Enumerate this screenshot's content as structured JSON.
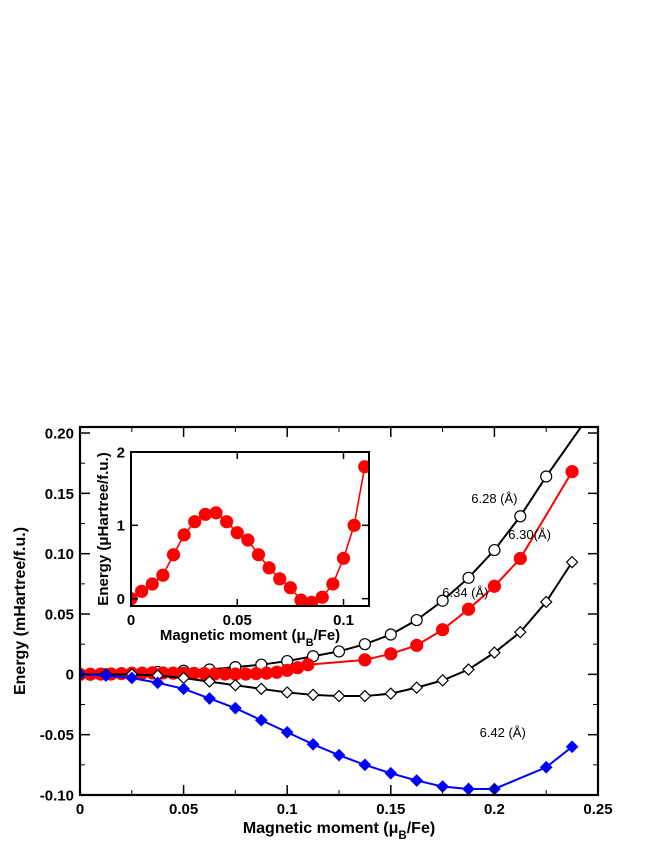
{
  "chart_data": [
    {
      "type": "line",
      "xlabel": "Magnetic moment (μB/Fe)",
      "ylabel": "Energy (mHartree/f.u.)",
      "xlim": [
        0,
        0.25
      ],
      "ylim": [
        -0.1,
        0.205
      ],
      "xticks": [
        0,
        0.05,
        0.1,
        0.15,
        0.2,
        0.25
      ],
      "xtick_labels": [
        "0",
        "0.05",
        "0.1",
        "0.15",
        "0.2",
        "0.25"
      ],
      "yticks": [
        -0.1,
        -0.05,
        0,
        0.05,
        0.1,
        0.15,
        0.2
      ],
      "ytick_labels": [
        "-0.10",
        "-0.05",
        "0",
        "0.05",
        "0.10",
        "0.15",
        "0.20"
      ],
      "grid": false,
      "series": [
        {
          "name": "6.28 (Å)",
          "color": "#000000",
          "marker": "open-circle",
          "x": [
            0,
            0.0125,
            0.025,
            0.0375,
            0.05,
            0.0625,
            0.075,
            0.0875,
            0.1,
            0.1125,
            0.125,
            0.1375,
            0.15,
            0.1625,
            0.175,
            0.1875,
            0.2,
            0.2125,
            0.225
          ],
          "y": [
            0,
            0,
            0.001,
            0.002,
            0.003,
            0.004,
            0.006,
            0.008,
            0.011,
            0.015,
            0.019,
            0.025,
            0.033,
            0.045,
            0.061,
            0.08,
            0.103,
            0.131,
            0.164
          ],
          "curve_extends_to": [
            0.25,
            0.225
          ]
        },
        {
          "name": "6.30(Å)",
          "color": "#ff0000",
          "marker": "filled-circle",
          "x": [
            0,
            0.005,
            0.01,
            0.015,
            0.02,
            0.025,
            0.03,
            0.035,
            0.04,
            0.045,
            0.05,
            0.055,
            0.06,
            0.065,
            0.07,
            0.075,
            0.08,
            0.085,
            0.09,
            0.095,
            0.1,
            0.105,
            0.11,
            0.1375,
            0.15,
            0.1625,
            0.175,
            0.1875,
            0.2,
            0.2125,
            0.2375
          ],
          "y": [
            0,
            0.0001,
            0.0002,
            0.0003,
            0.0006,
            0.0009,
            0.001,
            0.0012,
            0.0011,
            0.001,
            0.0009,
            0.0008,
            0.0006,
            0.0004,
            0.0003,
            0.0002,
            0.0003,
            0.0006,
            0.001,
            0.0018,
            0.0033,
            0.0055,
            0.008,
            0.012,
            0.017,
            0.024,
            0.037,
            0.054,
            0.073,
            0.096,
            0.168
          ]
        },
        {
          "name": "6.34 (Å)",
          "color": "#000000",
          "marker": "open-diamond",
          "x": [
            0,
            0.0125,
            0.025,
            0.0375,
            0.05,
            0.0625,
            0.075,
            0.0875,
            0.1,
            0.1125,
            0.125,
            0.1375,
            0.15,
            0.1625,
            0.175,
            0.1875,
            0.2,
            0.2125,
            0.225,
            0.2375
          ],
          "y": [
            0,
            0,
            0,
            -0.001,
            -0.003,
            -0.006,
            -0.009,
            -0.012,
            -0.015,
            -0.017,
            -0.018,
            -0.018,
            -0.016,
            -0.011,
            -0.005,
            0.004,
            0.018,
            0.035,
            0.06,
            0.093
          ]
        },
        {
          "name": "6.42 (Å)",
          "color": "#0000ff",
          "marker": "filled-diamond",
          "x": [
            0,
            0.0125,
            0.025,
            0.0375,
            0.05,
            0.0625,
            0.075,
            0.0875,
            0.1,
            0.1125,
            0.125,
            0.1375,
            0.15,
            0.1625,
            0.175,
            0.1875,
            0.2,
            0.225,
            0.2375
          ],
          "y": [
            0,
            -0.001,
            -0.003,
            -0.007,
            -0.012,
            -0.02,
            -0.028,
            -0.038,
            -0.048,
            -0.058,
            -0.067,
            -0.075,
            -0.082,
            -0.088,
            -0.093,
            -0.095,
            -0.095,
            -0.077,
            -0.06
          ]
        }
      ],
      "annotations": [
        {
          "text": "6.28 (Å)",
          "x": 0.2,
          "y": 0.142
        },
        {
          "text": "6.30(Å)",
          "x": 0.217,
          "y": 0.112
        },
        {
          "text": "6.34 (Å)",
          "x": 0.186,
          "y": 0.064
        },
        {
          "text": "6.42 (Å)",
          "x": 0.204,
          "y": -0.052
        }
      ]
    },
    {
      "type": "line",
      "inset": true,
      "xlabel": "Magnetic moment (μB/Fe)",
      "ylabel": "Energy (μHartree/f.u.)",
      "xlim": [
        0,
        0.112
      ],
      "ylim": [
        -0.1,
        2.0
      ],
      "xticks": [
        0,
        0.05,
        0.1
      ],
      "xtick_labels": [
        "0",
        "0.05",
        "0.1"
      ],
      "yticks": [
        0,
        1,
        2
      ],
      "ytick_labels": [
        "0",
        "1",
        "2"
      ],
      "series": [
        {
          "name": "",
          "color": "#ff0000",
          "marker": "filled-circle",
          "x": [
            0,
            0.005,
            0.01,
            0.015,
            0.02,
            0.025,
            0.03,
            0.035,
            0.04,
            0.045,
            0.05,
            0.055,
            0.06,
            0.065,
            0.07,
            0.075,
            0.08,
            0.085,
            0.09,
            0.095,
            0.1,
            0.105,
            0.11
          ],
          "y": [
            0,
            0.1,
            0.2,
            0.32,
            0.6,
            0.87,
            1.05,
            1.15,
            1.17,
            1.05,
            0.9,
            0.8,
            0.6,
            0.42,
            0.27,
            0.15,
            -0.02,
            -0.05,
            0.02,
            0.2,
            0.55,
            1.0,
            1.8
          ]
        }
      ]
    }
  ]
}
